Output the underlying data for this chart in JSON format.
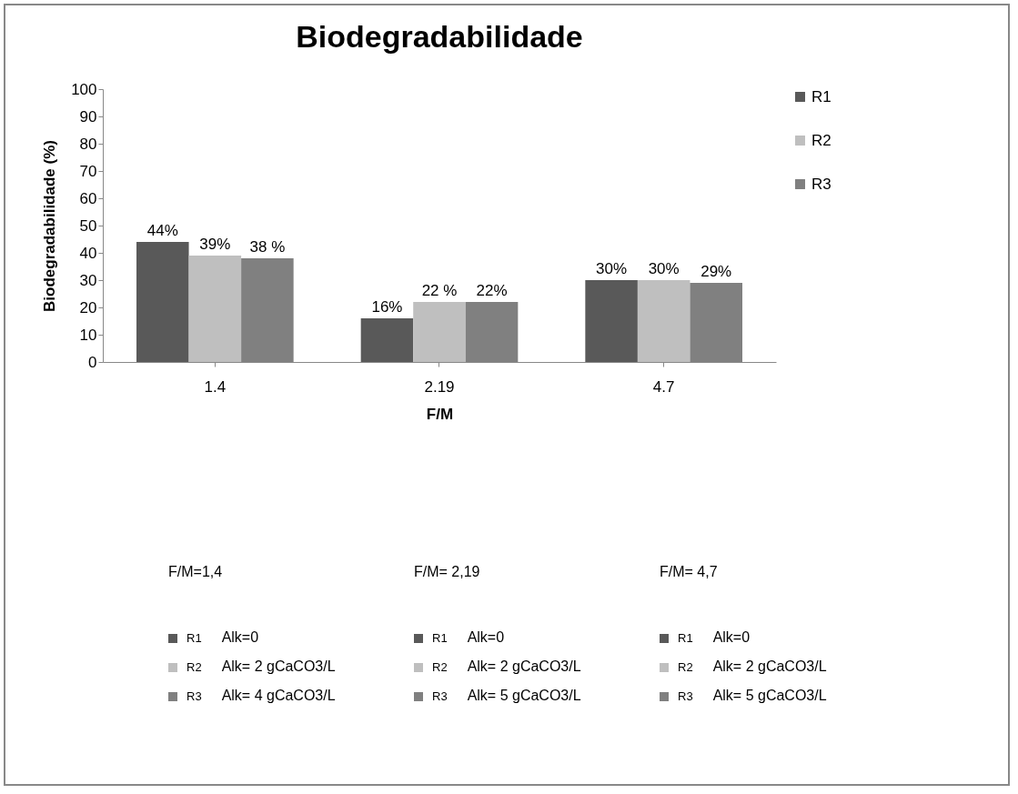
{
  "chart_data": {
    "type": "bar",
    "title": "Biodegradabilidade",
    "xlabel": "F/M",
    "ylabel": "Biodegradabilidade (%)",
    "categories": [
      "1.4",
      "2.19",
      "4.7"
    ],
    "series": [
      {
        "name": "R1",
        "color": "#595959",
        "values": [
          44,
          16,
          30
        ],
        "value_labels": [
          "44%",
          "16%",
          "30%"
        ]
      },
      {
        "name": "R2",
        "color": "#bfbfbf",
        "values": [
          39,
          22,
          30
        ],
        "value_labels": [
          "39%",
          "22 %",
          "30%"
        ]
      },
      {
        "name": "R3",
        "color": "#808080",
        "values": [
          38,
          22,
          29
        ],
        "value_labels": [
          "38 %",
          "22%",
          "29%"
        ]
      }
    ],
    "ylim": [
      0,
      100
    ],
    "yticks": [
      0,
      10,
      20,
      30,
      40,
      50,
      60,
      70,
      80,
      90,
      100
    ],
    "grid": false,
    "legend": "right",
    "annotations": [
      "F/M=1,4",
      "F/M= 2,19",
      "F/M= 4,7",
      "R1",
      "Alk=0",
      "R1",
      "Alk=0",
      "R1",
      "Alk=0",
      "R2",
      "Alk= 2 gCaCO3/L",
      "R2",
      "Alk= 2 gCaCO3/L",
      "R2",
      "Alk= 2 gCaCO3/L",
      "R3",
      "Alk= 4 gCaCO3/L",
      "R3",
      "Alk= 5 gCaCO3/L",
      "R3",
      "Alk= 5 gCaCO3/L"
    ]
  }
}
